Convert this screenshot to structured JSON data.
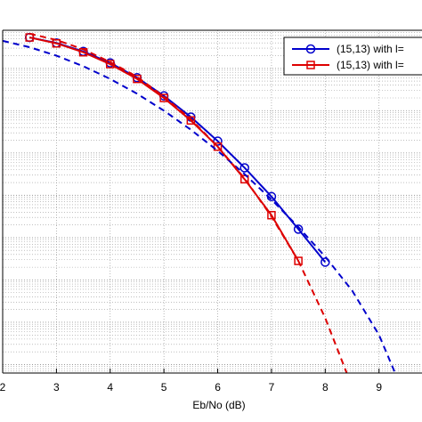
{
  "chart_data": {
    "type": "line",
    "xlabel": "Eb/No (dB)",
    "xlim": [
      2,
      9.8
    ],
    "x_ticks": [
      "2",
      "3",
      "4",
      "5",
      "6",
      "7",
      "8",
      "9"
    ],
    "ylim": [
      -8.2,
      -0.1
    ],
    "y_scale": "log",
    "grid": true,
    "legend_placement": "top-right",
    "series": [
      {
        "name": "(15,13) with l=",
        "color": "#0000cc",
        "marker": "circle",
        "style": "solid",
        "x": [
          2.5,
          3,
          3.5,
          4,
          4.5,
          5,
          5.5,
          6,
          6.5,
          7,
          7.5,
          8
        ],
        "log10_y": [
          -0.27,
          -0.4,
          -0.6,
          -0.87,
          -1.22,
          -1.65,
          -2.15,
          -2.72,
          -3.35,
          -4.03,
          -4.8,
          -5.58
        ]
      },
      {
        "name": "(15,13) with l=",
        "color": "#dd0000",
        "marker": "square",
        "style": "solid",
        "x": [
          2.5,
          3,
          3.5,
          4,
          4.5,
          5,
          5.5,
          6,
          6.5,
          7,
          7.5
        ],
        "log10_y": [
          -0.27,
          -0.41,
          -0.62,
          -0.9,
          -1.25,
          -1.7,
          -2.23,
          -2.85,
          -3.62,
          -4.47,
          -5.55
        ]
      },
      {
        "color": "#0000cc",
        "marker": "none",
        "style": "dashed",
        "x": [
          2,
          2.5,
          3,
          3.5,
          4,
          4.5,
          5,
          5.5,
          6,
          6.5,
          7,
          7.5,
          8,
          8.5,
          9,
          9.3
        ],
        "log10_y": [
          -0.35,
          -0.5,
          -0.7,
          -0.95,
          -1.25,
          -1.6,
          -2.0,
          -2.45,
          -2.95,
          -3.5,
          -4.1,
          -4.75,
          -5.45,
          -6.25,
          -7.3,
          -8.2
        ]
      },
      {
        "color": "#dd0000",
        "marker": "none",
        "style": "dashed",
        "x": [
          2.5,
          3,
          3.5,
          4,
          4.5,
          5,
          5.5,
          6,
          6.5,
          7,
          7.5,
          8,
          8.4
        ],
        "log10_y": [
          -0.18,
          -0.33,
          -0.55,
          -0.85,
          -1.2,
          -1.67,
          -2.2,
          -2.85,
          -3.6,
          -4.5,
          -5.55,
          -6.9,
          -8.2
        ]
      }
    ]
  }
}
